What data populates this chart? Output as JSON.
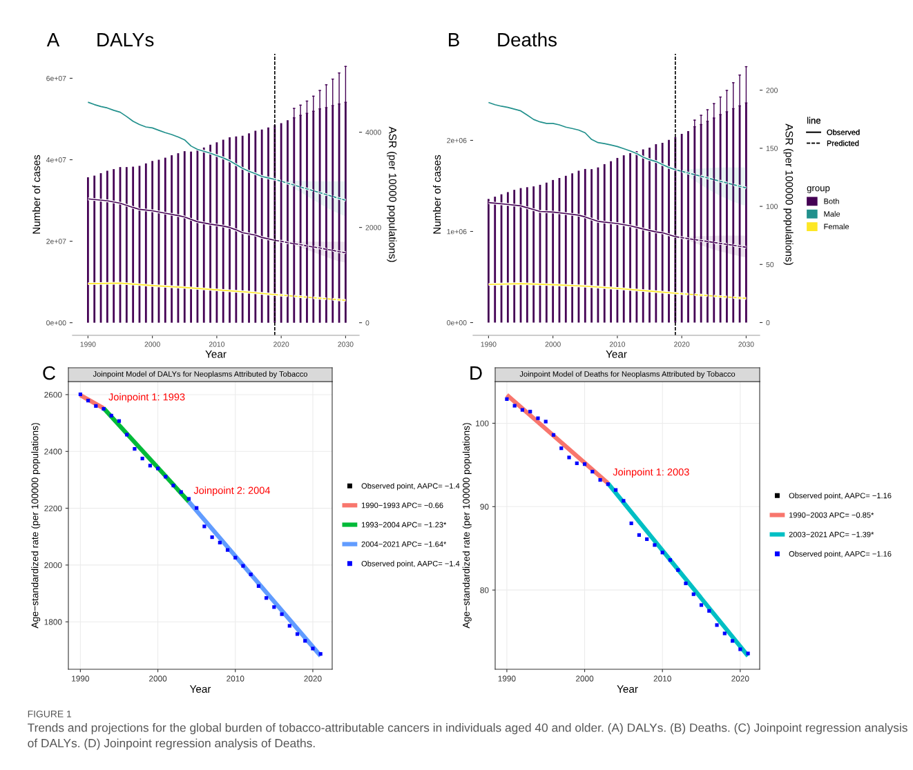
{
  "chart_data": [
    {
      "type": "bar",
      "title": "DALYs",
      "xlabel": "Year",
      "ylabel": "Number of cases",
      "y2label": "ASR (per 10000 populations)",
      "annotations": [
        "A"
      ],
      "xlim": [
        1987.6,
        2032.1
      ],
      "xticks": [
        1990,
        2000,
        2010,
        2020,
        2030
      ],
      "ylim": [
        -3100000,
        66000000
      ],
      "yticks": [
        {
          "value": 0,
          "label": "0e+00"
        },
        {
          "value": 20000000,
          "label": "2e+07"
        },
        {
          "value": 40000000,
          "label": "4e+07"
        },
        {
          "value": 60000000,
          "label": "6e+07"
        }
      ],
      "y2lim": [
        -265,
        5646
      ],
      "y2ticks": [
        0,
        2000,
        4000
      ],
      "ref_lines": [
        {
          "axis": "x",
          "value": 2019,
          "color": "#000000",
          "line_style": "dashed"
        }
      ],
      "series": [
        {
          "type": "bar",
          "color": "#440154",
          "x": [
            1990,
            1991,
            1992,
            1993,
            1994,
            1995,
            1996,
            1997,
            1998,
            1999,
            2000,
            2001,
            2002,
            2003,
            2004,
            2005,
            2006,
            2007,
            2008,
            2009,
            2010,
            2011,
            2012,
            2013,
            2014,
            2015,
            2016,
            2017,
            2018,
            2019,
            2020,
            2021,
            2022,
            2023,
            2024,
            2025,
            2026,
            2027,
            2028,
            2029,
            2030
          ],
          "values": [
            35700000,
            36100000,
            36700000,
            37300000,
            37700000,
            38200000,
            38200000,
            38300000,
            38500000,
            39100000,
            39700000,
            40000000,
            40500000,
            41100000,
            41600000,
            42100000,
            42000000,
            42300000,
            43000000,
            43700000,
            44300000,
            44900000,
            45500000,
            45700000,
            45900000,
            46500000,
            47100000,
            47400000,
            47900000,
            48500000,
            49000000,
            49700000,
            50300000,
            50900000,
            51400000,
            51900000,
            52500000,
            52800000,
            53300000,
            53700000,
            54100000
          ],
          "errors": [
            null,
            null,
            null,
            null,
            null,
            null,
            null,
            null,
            null,
            null,
            null,
            null,
            null,
            null,
            null,
            null,
            null,
            null,
            null,
            null,
            null,
            null,
            null,
            null,
            null,
            null,
            null,
            null,
            null,
            null,
            null,
            null,
            [
              50300000,
              52600000
            ],
            [
              50900000,
              53400000
            ],
            [
              51400000,
              54400000
            ],
            [
              51900000,
              55600000
            ],
            [
              52500000,
              57000000
            ],
            [
              52800000,
              58400000
            ],
            [
              53300000,
              59800000
            ],
            [
              53700000,
              61300000
            ],
            [
              54100000,
              62900000
            ]
          ]
        },
        {
          "type": "line",
          "axis": "y2",
          "color": "#21908c",
          "line_style": "solid",
          "x": [
            1990,
            1991,
            1992,
            1993,
            1994,
            1995,
            1996,
            1997,
            1998,
            1999,
            2000,
            2001,
            2002,
            2003,
            2004,
            2005,
            2006,
            2007,
            2008,
            2009,
            2010,
            2011,
            2012,
            2013,
            2014,
            2015,
            2016,
            2017,
            2018,
            2019
          ],
          "values": [
            4630,
            4580,
            4540,
            4510,
            4460,
            4420,
            4330,
            4230,
            4160,
            4110,
            4090,
            4040,
            3990,
            3950,
            3900,
            3840,
            3710,
            3640,
            3600,
            3560,
            3510,
            3460,
            3400,
            3320,
            3240,
            3180,
            3130,
            3070,
            3040,
            3010
          ]
        },
        {
          "type": "line",
          "axis": "y2",
          "color": "#21908c",
          "line_style": "dashed",
          "x": [
            2019,
            2020,
            2021,
            2022,
            2023,
            2024,
            2025,
            2026,
            2027,
            2028,
            2029,
            2030
          ],
          "values": [
            3010,
            2970,
            2930,
            2890,
            2850,
            2810,
            2770,
            2730,
            2690,
            2650,
            2610,
            2570
          ],
          "lower": [
            3010,
            2990,
            2900,
            2820,
            2740,
            2660,
            2580,
            2500,
            2420,
            2350,
            2290,
            2230
          ],
          "upper": [
            3010,
            3000,
            2990,
            2980,
            2980,
            2970,
            2970,
            2970,
            2970,
            2970,
            2970,
            2970
          ]
        },
        {
          "type": "line",
          "axis": "y2",
          "color": "#440154",
          "line_style": "solid",
          "x": [
            1990,
            1993,
            1995,
            1997,
            1998,
            2000,
            2002,
            2004,
            2005,
            2007,
            2009,
            2011,
            2012,
            2013,
            2014,
            2016,
            2017,
            2019
          ],
          "values": [
            2600,
            2560,
            2510,
            2420,
            2380,
            2350,
            2300,
            2250,
            2220,
            2120,
            2070,
            2030,
            2000,
            1950,
            1890,
            1840,
            1790,
            1730
          ]
        },
        {
          "type": "line",
          "axis": "y2",
          "color": "#440154",
          "line_style": "dashed",
          "x": [
            2019,
            2020,
            2021,
            2022,
            2023,
            2024,
            2025,
            2026,
            2027,
            2028,
            2029,
            2030
          ],
          "values": [
            1730,
            1710,
            1680,
            1660,
            1640,
            1610,
            1590,
            1570,
            1540,
            1520,
            1490,
            1470
          ],
          "lower": [
            1730,
            1710,
            1670,
            1620,
            1580,
            1530,
            1480,
            1430,
            1380,
            1330,
            1290,
            1260
          ],
          "upper": [
            1730,
            1720,
            1720,
            1710,
            1700,
            1700,
            1700,
            1700,
            1700,
            1700,
            1700,
            1700
          ]
        },
        {
          "type": "line",
          "axis": "y2",
          "color": "#fde725",
          "line_style": "solid",
          "x": [
            1990,
            1995,
            2000,
            2005,
            2010,
            2015,
            2019
          ],
          "values": [
            820,
            830,
            780,
            740,
            690,
            640,
            590
          ]
        },
        {
          "type": "line",
          "axis": "y2",
          "color": "#fde725",
          "line_style": "dashed",
          "x": [
            2019,
            2030
          ],
          "values": [
            590,
            470
          ]
        }
      ]
    },
    {
      "type": "bar",
      "title": "Deaths",
      "xlabel": "Year",
      "ylabel": "Number of cases",
      "y2label": "ASR (per 100000 populations)",
      "annotations": [
        "B",
        "line",
        "Observed",
        "Predicted"
      ],
      "legend_title": "group",
      "legend": "right",
      "xlim": [
        1987.6,
        2032.1
      ],
      "xticks": [
        1990,
        2000,
        2010,
        2020,
        2030
      ],
      "ylim": [
        -140000,
        2950000
      ],
      "yticks": [
        {
          "value": 0,
          "label": "0e+00"
        },
        {
          "value": 1000000,
          "label": "1e+06"
        },
        {
          "value": 2000000,
          "label": "2e+06"
        }
      ],
      "y2lim": [
        -11.0,
        231.3
      ],
      "y2ticks": [
        0,
        50,
        100,
        150,
        200
      ],
      "ref_lines": [
        {
          "axis": "x",
          "value": 2019,
          "color": "#000000",
          "line_style": "dashed"
        }
      ],
      "series": [
        {
          "type": "bar",
          "name": "Both",
          "color": "#440154",
          "x": [
            1990,
            1991,
            1992,
            1993,
            1994,
            1995,
            1996,
            1997,
            1998,
            1999,
            2000,
            2001,
            2002,
            2003,
            2004,
            2005,
            2006,
            2007,
            2008,
            2009,
            2010,
            2011,
            2012,
            2013,
            2014,
            2015,
            2016,
            2017,
            2018,
            2019,
            2020,
            2021,
            2022,
            2023,
            2024,
            2025,
            2026,
            2027,
            2028,
            2029,
            2030
          ],
          "values": [
            1357000,
            1382000,
            1408000,
            1432000,
            1457000,
            1476000,
            1486000,
            1495000,
            1512000,
            1536000,
            1565000,
            1587000,
            1611000,
            1638000,
            1667000,
            1686000,
            1684000,
            1703000,
            1739000,
            1771000,
            1807000,
            1836000,
            1860000,
            1882000,
            1901000,
            1920000,
            1957000,
            1973000,
            2005000,
            2036000,
            2072000,
            2101000,
            2150000,
            2174000,
            2210000,
            2246000,
            2283000,
            2314000,
            2348000,
            2379000,
            2411000
          ],
          "errors": [
            null,
            null,
            null,
            null,
            null,
            null,
            null,
            null,
            null,
            null,
            null,
            null,
            null,
            null,
            null,
            null,
            null,
            null,
            null,
            null,
            null,
            null,
            null,
            null,
            null,
            null,
            null,
            null,
            null,
            null,
            null,
            null,
            [
              2150000,
              2222000
            ],
            [
              2174000,
              2275000
            ],
            [
              2210000,
              2336000
            ],
            [
              2246000,
              2403000
            ],
            [
              2283000,
              2476000
            ],
            [
              2314000,
              2548000
            ],
            [
              2348000,
              2633000
            ],
            [
              2379000,
              2717000
            ],
            [
              2411000,
              2809000
            ]
          ]
        },
        {
          "type": "line",
          "axis": "y2",
          "name": "Male",
          "color": "#21908c",
          "line_style": "solid",
          "x": [
            1990,
            1991,
            1992,
            1993,
            1994,
            1995,
            1996,
            1997,
            1998,
            1999,
            2000,
            2001,
            2002,
            2003,
            2004,
            2005,
            2006,
            2007,
            2008,
            2009,
            2010,
            2011,
            2012,
            2013,
            2014,
            2015,
            2016,
            2017,
            2018,
            2019
          ],
          "values": [
            189.4,
            187.5,
            186.2,
            185.2,
            183.7,
            182.2,
            178.6,
            174.8,
            172.7,
            171.4,
            171.4,
            170.1,
            168.2,
            167.0,
            165.7,
            163.3,
            157.6,
            154.9,
            154.0,
            152.8,
            151.5,
            149.6,
            147.7,
            145.5,
            142.4,
            140.2,
            138.6,
            136.0,
            133.5,
            131.6
          ]
        },
        {
          "type": "line",
          "axis": "y2",
          "color": "#21908c",
          "line_style": "dashed",
          "x": [
            2019,
            2020,
            2021,
            2022,
            2023,
            2024,
            2025,
            2026,
            2027,
            2028,
            2029,
            2030
          ],
          "values": [
            131.6,
            130.2,
            128.7,
            127.3,
            125.9,
            124.5,
            123.0,
            121.6,
            120.2,
            118.7,
            117.3,
            115.9
          ],
          "lower": [
            131.6,
            129.5,
            126.0,
            122.0,
            118.5,
            115.0,
            112.0,
            109.0,
            106.5,
            104.0,
            102.0,
            100.4
          ],
          "upper": [
            131.6,
            131.5,
            131.8,
            132.2,
            132.6,
            133.0,
            133.3,
            133.5,
            133.5,
            133.5,
            133.5,
            133.5
          ]
        },
        {
          "type": "line",
          "axis": "y2",
          "color": "#440154",
          "line_style": "solid",
          "x": [
            1990,
            1993,
            1995,
            1997,
            1998,
            2000,
            2002,
            2004,
            2005,
            2007,
            2010,
            2012,
            2014,
            2016,
            2017,
            2019
          ],
          "values": [
            103.2,
            101.7,
            100.4,
            97.2,
            95.6,
            95.1,
            93.8,
            92.4,
            90.9,
            87.1,
            85.2,
            83.3,
            80.5,
            78.0,
            77.3,
            73.9
          ]
        },
        {
          "type": "line",
          "axis": "y2",
          "color": "#440154",
          "line_style": "dashed",
          "x": [
            2019,
            2020,
            2021,
            2022,
            2023,
            2024,
            2025,
            2026,
            2027,
            2028,
            2029,
            2030
          ],
          "values": [
            73.9,
            73.1,
            72.2,
            71.4,
            70.6,
            69.8,
            68.9,
            68.1,
            67.3,
            66.5,
            65.6,
            64.8
          ],
          "lower": [
            73.9,
            72.5,
            70.5,
            68.5,
            66.5,
            64.5,
            62.8,
            61.2,
            59.8,
            58.4,
            57.1,
            55.9
          ],
          "upper": [
            73.9,
            73.8,
            73.9,
            74.1,
            74.3,
            74.5,
            74.7,
            74.8,
            74.8,
            74.8,
            74.8,
            74.8
          ]
        },
        {
          "type": "line",
          "axis": "y2",
          "name": "Female",
          "color": "#fde725",
          "line_style": "solid",
          "x": [
            1990,
            1995,
            2000,
            2005,
            2010,
            2015,
            2019
          ],
          "values": [
            32.8,
            33.5,
            32.6,
            31.3,
            29.4,
            27.1,
            25.2
          ]
        },
        {
          "type": "line",
          "axis": "y2",
          "color": "#fde725",
          "line_style": "dashed",
          "x": [
            2019,
            2030
          ],
          "values": [
            25.2,
            20.8
          ]
        }
      ]
    },
    {
      "type": "line",
      "title": "Joinpoint Model of DALYs for Neoplasms Attributed by Tobacco",
      "xlabel": "Year",
      "ylabel": "Age−standardized rate (per 100000 populations)",
      "grid": true,
      "legend": "right",
      "annotations": [
        "C",
        {
          "text": "Joinpoint 1: 1993",
          "x": 1993,
          "y": 2552
        },
        {
          "text": "Joinpoint 2: 2004",
          "x": 2004,
          "y": 2223
        }
      ],
      "xlim": [
        1988.45,
        2022.5
      ],
      "xticks": [
        1990,
        2000,
        2010,
        2020
      ],
      "ylim": [
        1633,
        2646
      ],
      "yticks": [
        1800,
        2000,
        2200,
        2400,
        2600
      ],
      "series": [
        {
          "type": "scatter",
          "name": "Observed point, AAPC= −1.4",
          "color": "#000000",
          "marker": "square"
        },
        {
          "type": "line",
          "name": "1990−1993 APC= −0.66",
          "color": "#f8766d",
          "x": [
            1990,
            1993
          ],
          "values": [
            2598,
            2552
          ]
        },
        {
          "type": "line",
          "name": "1993−2004 APC= −1.23*",
          "color": "#00ba38",
          "x": [
            1993,
            2004
          ],
          "values": [
            2552,
            2223
          ]
        },
        {
          "type": "line",
          "name": "2004−2021 APC= −1.64*",
          "color": "#619cff",
          "x": [
            2004,
            2021
          ],
          "values": [
            2223,
            1680
          ]
        },
        {
          "type": "scatter",
          "name": "Observed point, AAPC= −1.4",
          "color": "#0000ff",
          "marker": "square",
          "x": [
            1990,
            1991,
            1992,
            1993,
            1994,
            1995,
            1996,
            1997,
            1998,
            1999,
            2000,
            2001,
            2002,
            2003,
            2004,
            2005,
            2006,
            2007,
            2008,
            2009,
            2010,
            2011,
            2012,
            2013,
            2014,
            2015,
            2016,
            2017,
            2018,
            2019,
            2020,
            2021
          ],
          "values": [
            2601,
            2579,
            2560,
            2550,
            2526,
            2507,
            2459,
            2409,
            2375,
            2350,
            2340,
            2311,
            2280,
            2257,
            2233,
            2201,
            2136,
            2098,
            2079,
            2053,
            2026,
            1997,
            1967,
            1926,
            1884,
            1852,
            1827,
            1786,
            1757,
            1733,
            1706,
            1687
          ]
        }
      ]
    },
    {
      "type": "line",
      "title": "Joinpoint Model of Deaths for Neoplasms Attributed by Tobacco",
      "xlabel": "Year",
      "ylabel": "Age−standardized rate (per 100000 populations)",
      "grid": true,
      "legend": "right",
      "annotations": [
        "D",
        {
          "text": "Joinpoint 1: 2003",
          "x": 2003,
          "y": 92.8
        },
        "FIGURE 1",
        "Trends and projections for the global burden of tobacco-attributable cancers in individuals aged 40 and older. (A) DALYs. (B) Deaths. (C) Joinpoint regression analysis of DALYs. (D) Joinpoint regression analysis of Deaths."
      ],
      "xlim": [
        1988.5,
        2022.5
      ],
      "xticks": [
        1990,
        2000,
        2010,
        2020
      ],
      "ylim": [
        70.5,
        105.0
      ],
      "yticks": [
        80,
        90,
        100
      ],
      "series": [
        {
          "type": "scatter",
          "name": "Observed point, AAPC= −1.16",
          "color": "#000000",
          "marker": "square"
        },
        {
          "type": "line",
          "name": "1990−2003 APC= −0.85*",
          "color": "#f8766d",
          "x": [
            1990,
            2003
          ],
          "values": [
            103.4,
            92.8
          ]
        },
        {
          "type": "line",
          "name": "2003−2021 APC= −1.39*",
          "color": "#00bfc4",
          "x": [
            2003,
            2021
          ],
          "values": [
            92.8,
            72.1
          ]
        },
        {
          "type": "scatter",
          "name": "Observed point, AAPC= −1.16",
          "color": "#0000ff",
          "marker": "square",
          "x": [
            1990,
            1991,
            1992,
            1993,
            1994,
            1995,
            1996,
            1997,
            1998,
            1999,
            2000,
            2001,
            2002,
            2003,
            2004,
            2005,
            2006,
            2007,
            2008,
            2009,
            2010,
            2011,
            2012,
            2013,
            2014,
            2015,
            2016,
            2017,
            2018,
            2019,
            2020,
            2021
          ],
          "values": [
            102.9,
            102.1,
            101.6,
            101.4,
            100.6,
            100.2,
            98.6,
            97.0,
            95.9,
            95.2,
            95.1,
            94.2,
            93.2,
            92.7,
            92.0,
            90.7,
            88.0,
            86.6,
            86.1,
            85.4,
            84.5,
            83.6,
            82.4,
            80.8,
            79.5,
            78.2,
            77.5,
            75.8,
            74.8,
            73.9,
            72.9,
            72.4
          ]
        }
      ]
    }
  ]
}
